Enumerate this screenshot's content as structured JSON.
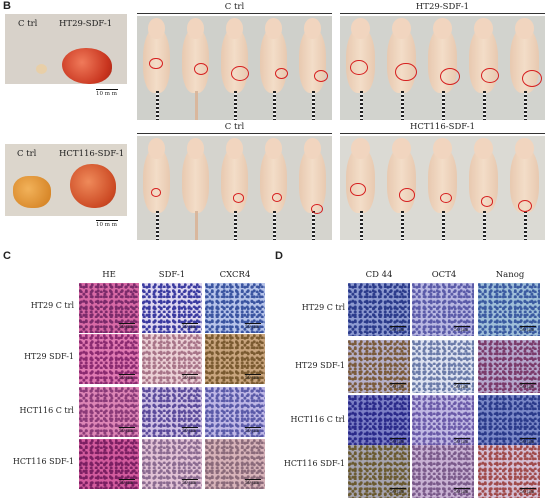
{
  "panel_b": {
    "label": "B",
    "tumors_top": {
      "left": "C trl",
      "right": "HT29-SDF-1",
      "scale": "10 m m"
    },
    "tumors_bottom": {
      "left": "C trl",
      "right": "HCT116-SDF-1",
      "scale": "10 m m"
    },
    "mice_top_left": "C trl",
    "mice_top_right": "HT29-SDF-1",
    "mice_bottom_left": "C trl",
    "mice_bottom_right": "HCT116-SDF-1"
  },
  "panel_c": {
    "label": "C",
    "columns": [
      "HE",
      "SDF-1",
      "CXCR4"
    ],
    "rows": [
      "HT29 C trl",
      "HT29 SDF-1",
      "HCT116 C trl",
      "HCT116 SDF-1"
    ],
    "scale": "50 μm"
  },
  "panel_d": {
    "label": "D",
    "columns": [
      "CD 44",
      "OCT4",
      "Nanog"
    ],
    "rows": [
      "HT29 C trl",
      "HT29 SDF-1",
      "HCT116 C trl",
      "HCT116 SDF-1"
    ],
    "scale": "50 μm"
  },
  "colors": {
    "he_pink": "#e07ab0",
    "ihc_blue": "#8a93c9",
    "ihc_brown": "#b88a6a",
    "circle_red": "#d62020",
    "mouse_skin": "#e8c9b0",
    "photo_bg": "#d9d6cf"
  }
}
